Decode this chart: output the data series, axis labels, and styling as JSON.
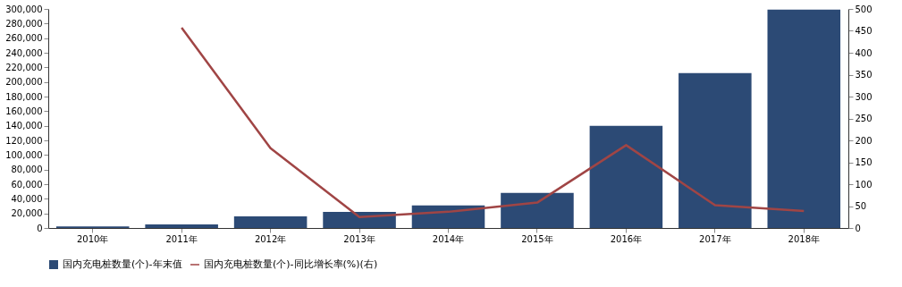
{
  "chart_data": {
    "type": "bar",
    "categories": [
      "2010年",
      "2011年",
      "2012年",
      "2013年",
      "2014年",
      "2015年",
      "2016年",
      "2017年",
      "2018年"
    ],
    "series": [
      {
        "name": "国内充电桩数量(个)-年末值",
        "color": "#2c4a75",
        "values": [
          2000,
          5000,
          16000,
          22000,
          31000,
          48000,
          140000,
          212000,
          299000
        ]
      },
      {
        "name": "国内充电桩数量(个)-同比增长率(%)(右)",
        "type": "line",
        "axis": "y2",
        "color": "#a04545",
        "values": [
          null,
          457,
          182,
          25,
          37,
          58,
          189,
          52,
          39
        ]
      }
    ],
    "ylim": [
      0,
      300000
    ],
    "yticks": [
      0,
      {
        "value": 20000,
        "label": "20,000"
      },
      {
        "value": 40000,
        "label": "40,000"
      },
      {
        "value": 60000,
        "label": "60,000"
      },
      {
        "value": 80000,
        "label": "80,000"
      },
      {
        "value": 100000,
        "label": "100,000"
      },
      {
        "value": 120000,
        "label": "120,000"
      },
      {
        "value": 140000,
        "label": "140,000"
      },
      {
        "value": 160000,
        "label": "160,000"
      },
      {
        "value": 180000,
        "label": "180,000"
      },
      {
        "value": 200000,
        "label": "200,000"
      },
      {
        "value": 220000,
        "label": "220,000"
      },
      {
        "value": 240000,
        "label": "240,000"
      },
      {
        "value": 260000,
        "label": "260,000"
      },
      {
        "value": 280000,
        "label": "280,000"
      },
      {
        "value": 300000,
        "label": "300,000"
      }
    ],
    "y2lim": [
      0,
      500
    ],
    "y2ticks": [
      0,
      50,
      100,
      150,
      200,
      250,
      300,
      350,
      400,
      450,
      500
    ],
    "grid": false,
    "legend": "bottom",
    "marker": "none",
    "line_style": "solid"
  }
}
